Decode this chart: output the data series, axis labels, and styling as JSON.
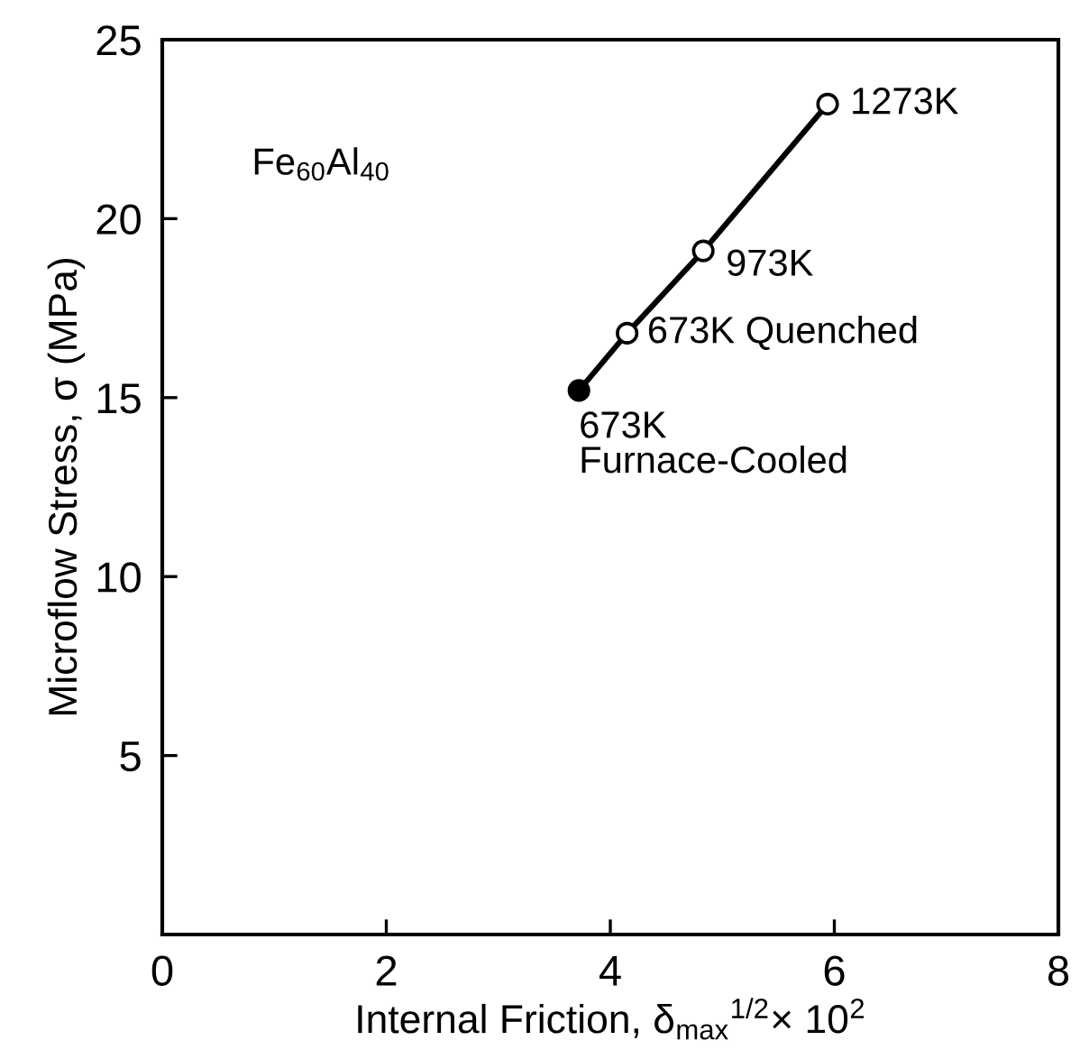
{
  "chart_data": {
    "type": "line",
    "xlabel": "Internal Friction, δ$_{max}$$^{1/2}$× 10$^{2}$",
    "ylabel": "Microflow Stress, σ (MPa)",
    "xlim": [
      0,
      8
    ],
    "ylim": [
      0,
      25
    ],
    "xticks": [
      0,
      2,
      4,
      6,
      8
    ],
    "yticks": [
      5,
      10,
      15,
      20,
      25
    ],
    "grid": false,
    "series": [
      {
        "color": "#000000",
        "x": [
          3.72,
          4.15,
          4.83,
          5.94
        ],
        "values": [
          15.2,
          16.8,
          19.1,
          23.2
        ],
        "marker": "none",
        "line_style": "solid"
      },
      {
        "type": "scatter",
        "color": "#000000",
        "colors": [
          "#000000"
        ],
        "x": [
          3.72
        ],
        "values": [
          15.2
        ],
        "marker": "circle"
      },
      {
        "type": "scatter",
        "color": "#000000",
        "colors": [
          "#ffffff",
          "#ffffff",
          "#ffffff"
        ],
        "x": [
          4.15,
          4.83,
          5.94
        ],
        "values": [
          16.8,
          19.1,
          23.2
        ],
        "marker": "circle"
      }
    ],
    "annotations": [
      {
        "text": "673K\nFurnace-Cooled",
        "x": 3.72,
        "y": 15.2
      },
      {
        "text": "673K Quenched",
        "x": 4.15,
        "y": 16.8
      },
      {
        "text": "973K",
        "x": 4.83,
        "y": 19.1
      },
      {
        "text": "1273K",
        "x": 5.94,
        "y": 23.2
      },
      "Fe$_{60}$Al$_{40}$"
    ]
  }
}
